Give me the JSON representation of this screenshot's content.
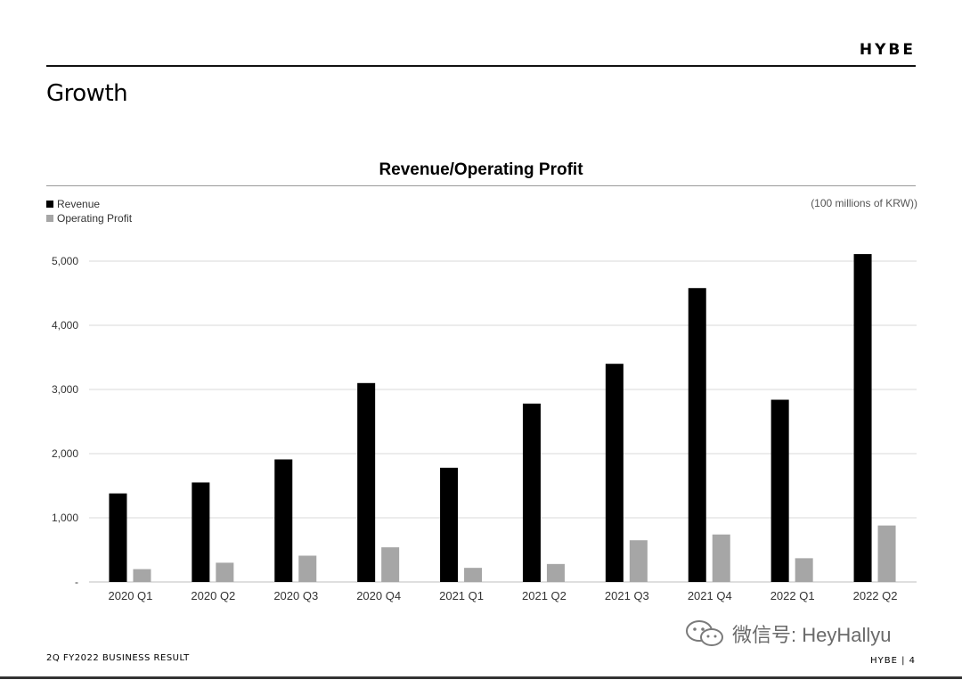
{
  "header": {
    "brand": "HYBE",
    "page_title": "Growth"
  },
  "footer": {
    "left": "2Q FY2022 BUSINESS RESULT",
    "right": "HYBE | 4"
  },
  "watermark": {
    "text": "微信号: HeyHallyu",
    "icon": "wechat-icon"
  },
  "colors": {
    "revenue": "#000000",
    "operating_profit": "#a6a6a6",
    "grid": "#d9d9d9"
  },
  "chart_data": {
    "type": "bar",
    "title": "Revenue/Operating Profit",
    "unit_note": "(100 millions of KRW))",
    "categories": [
      "2020 Q1",
      "2020 Q2",
      "2020 Q3",
      "2020 Q4",
      "2021 Q1",
      "2021 Q2",
      "2021 Q3",
      "2021 Q4",
      "2022 Q1",
      "2022 Q2"
    ],
    "series": [
      {
        "name": "Revenue",
        "values": [
          1380,
          1550,
          1910,
          3100,
          1780,
          2780,
          3400,
          4580,
          2840,
          5110
        ]
      },
      {
        "name": "Operating Profit",
        "values": [
          200,
          300,
          410,
          540,
          220,
          280,
          650,
          740,
          370,
          880
        ]
      }
    ],
    "yticks": [
      "-",
      "1,000",
      "2,000",
      "3,000",
      "4,000",
      "5,000"
    ],
    "ylim": [
      0,
      5000
    ],
    "grid": true,
    "legend_position": "top-left"
  }
}
